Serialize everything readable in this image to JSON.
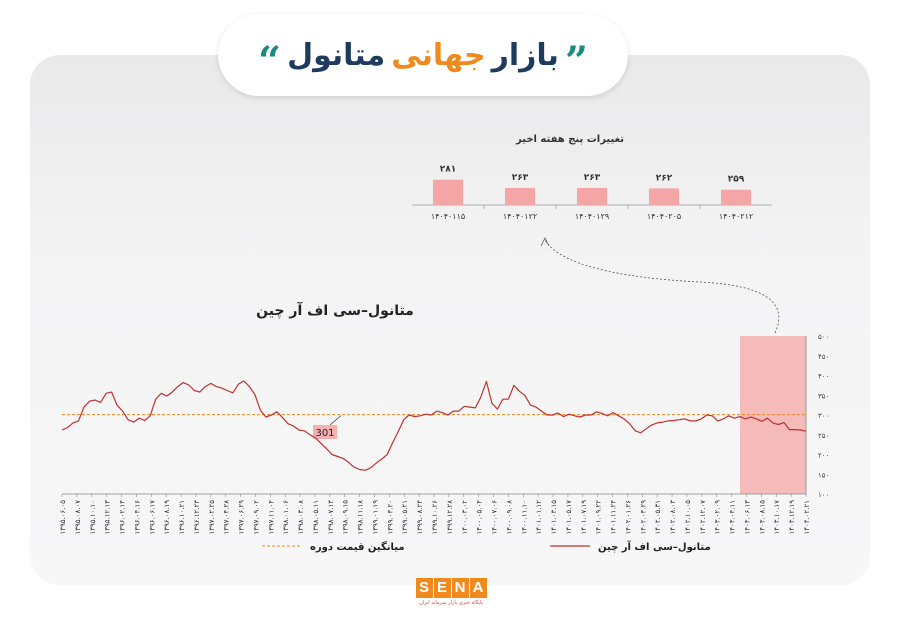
{
  "header": {
    "quote_open": "”",
    "quote_close": "“",
    "title_part1": "بازار",
    "title_part2": "جهانی",
    "title_part3": "متانول"
  },
  "logo": {
    "letters": [
      "S",
      "E",
      "N",
      "A"
    ],
    "subtitle": "پایگاه خبری بازار سرمایه ایران"
  },
  "colors": {
    "bar": "#f4a5a5",
    "line": "#c0322f",
    "avg": "#f08a1c",
    "highlight": "#f4a5a5",
    "orange": "#f08a1c",
    "navy": "#1e3a5f"
  },
  "chart_data": [
    {
      "type": "bar",
      "title": "تغییرات پنج هفته اخیر",
      "categories": [
        "۱۴۰۴۰۱۱۵",
        "۱۴۰۴۰۱۲۲",
        "۱۴۰۴۰۱۲۹",
        "۱۴۰۴۰۲۰۵",
        "۱۴۰۴۰۲۱۲"
      ],
      "values": [
        281,
        263,
        263,
        262,
        259
      ],
      "value_labels": [
        "۲۸۱",
        "۲۶۳",
        "۲۶۳",
        "۲۶۲",
        "۲۵۹"
      ],
      "ylim": [
        0,
        300
      ]
    },
    {
      "type": "line",
      "title": "متانول–سی اف آر چین",
      "ylim": [
        100,
        500
      ],
      "yticks": [
        100,
        150,
        200,
        250,
        300,
        350,
        400,
        450,
        500
      ],
      "ytick_labels": [
        "۱۰۰",
        "۱۵۰",
        "۲۰۰",
        "۲۵۰",
        "۳۰۰",
        "۳۵۰",
        "۴۰۰",
        "۴۵۰",
        "۵۰۰"
      ],
      "x_tick_labels": [
        "۱۳۹۵.۰۶.۰۵",
        "۱۳۹۵.۰۸.۰۷",
        "۱۳۹۵.۱۰.۱۰",
        "۱۳۹۵.۱۲.۱۳",
        "۱۳۹۶.۰۲.۱۴",
        "۱۳۹۶.۰۴.۱۶",
        "۱۳۹۶.۰۶.۱۷",
        "۱۳۹۶.۰۸.۱۹",
        "۱۳۹۶.۱۰.۲۱",
        "۱۳۹۶.۱۲.۲۳",
        "۱۳۹۷.۰۲.۲۵",
        "۱۳۹۷.۰۴.۲۸",
        "۱۳۹۷.۰۶.۲۹",
        "۱۳۹۷.۰۹.۰۲",
        "۱۳۹۷.۱۱.۰۴",
        "۱۳۹۸.۰۱.۰۶",
        "۱۳۹۸.۰۳.۰۸",
        "۱۳۹۸.۰۵.۱۱",
        "۱۳۹۸.۰۷.۱۳",
        "۱۳۹۸.۰۹.۱۵",
        "۱۳۹۸.۱۱.۱۸",
        "۱۳۹۹.۰۱.۱۹",
        "۱۳۹۹.۰۳.۲۰",
        "۱۳۹۹.۰۵.۲۱",
        "۱۳۹۹.۰۸.۲۴",
        "۱۳۹۹.۱۰.۲۶",
        "۱۳۹۹.۱۲.۲۸",
        "۱۴۰۰.۰۳.۰۲",
        "۱۴۰۰.۰۵.۰۴",
        "۱۴۰۰.۰۷.۰۶",
        "۱۴۰۰.۰۹.۰۸",
        "۱۴۰۰.۱۱.۱۰",
        "۱۴۰۱.۰۱.۱۲",
        "۱۴۰۱.۰۳.۱۵",
        "۱۴۰۱.۰۵.۱۷",
        "۱۴۰۱.۰۷.۱۹",
        "۱۴۰۱.۰۹.۲۲",
        "۱۴۰۱.۱۱.۲۴",
        "۱۴۰۲.۰۱.۲۶",
        "۱۴۰۲.۰۳.۲۹",
        "۱۴۰۲.۰۵.۳۱",
        "۱۴۰۲.۰۸.۰۳",
        "۱۴۰۲.۱۰.۰۵",
        "۱۴۰۲.۱۲.۰۷",
        "۱۴۰۳.۰۲.۰۹",
        "۱۴۰۳.۰۴.۱۱",
        "۱۴۰۳.۰۶.۱۳",
        "۱۴۰۳.۰۸.۱۵",
        "۱۴۰۳.۱۰.۱۷",
        "۱۴۰۳.۱۲.۱۹",
        "۱۴۰۴.۰۲.۲۱"
      ],
      "average_value": 301,
      "average_label": "301",
      "values": [
        262,
        268,
        280,
        285,
        320,
        335,
        338,
        332,
        355,
        358,
        325,
        310,
        288,
        282,
        292,
        286,
        298,
        340,
        355,
        348,
        358,
        372,
        382,
        376,
        362,
        358,
        372,
        380,
        372,
        368,
        362,
        356,
        378,
        386,
        372,
        352,
        312,
        295,
        300,
        308,
        294,
        278,
        272,
        262,
        260,
        250,
        242,
        228,
        215,
        200,
        195,
        190,
        180,
        168,
        162,
        160,
        166,
        178,
        188,
        200,
        230,
        258,
        288,
        300,
        296,
        298,
        302,
        300,
        310,
        306,
        300,
        310,
        310,
        322,
        320,
        318,
        345,
        385,
        330,
        315,
        340,
        340,
        375,
        360,
        350,
        325,
        320,
        310,
        300,
        300,
        305,
        296,
        302,
        298,
        295,
        300,
        300,
        308,
        304,
        298,
        306,
        298,
        290,
        278,
        260,
        255,
        265,
        275,
        280,
        282,
        285,
        286,
        288,
        290,
        285,
        285,
        290,
        300,
        298,
        285,
        290,
        298,
        292,
        296,
        290,
        295,
        290,
        284,
        292,
        280,
        276,
        281,
        263,
        263,
        262,
        259
      ],
      "legend": [
        "متانول–سی اف آر چین",
        "میانگین قیمت دوره"
      ]
    }
  ]
}
